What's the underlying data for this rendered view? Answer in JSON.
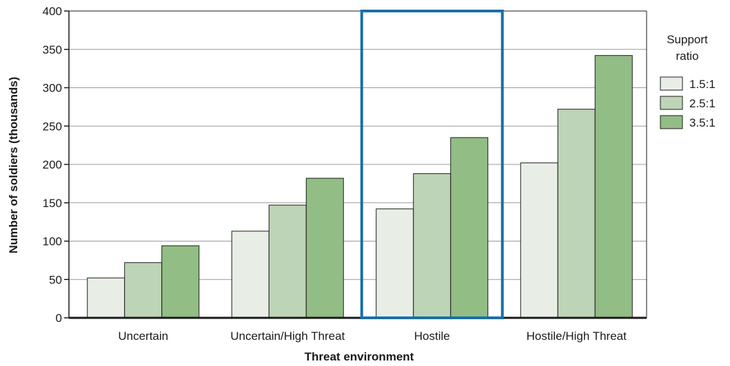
{
  "chart_data": {
    "type": "bar",
    "xlabel": "Threat environment",
    "ylabel": "Number of soldiers (thousands)",
    "ylim": [
      0,
      400
    ],
    "yticks": [
      0,
      50,
      100,
      150,
      200,
      250,
      300,
      350,
      400
    ],
    "grid": true,
    "categories": [
      "Uncertain",
      "Uncertain/High Threat",
      "Hostile",
      "Hostile/High Threat"
    ],
    "highlighted_category": "Hostile",
    "legend": {
      "title_lines": [
        "Support",
        "ratio"
      ],
      "placement": "right"
    },
    "series": [
      {
        "name": "1.5:1",
        "color": "#e8eee6",
        "values": [
          52,
          113,
          142,
          202
        ]
      },
      {
        "name": "2.5:1",
        "color": "#bed4b6",
        "values": [
          72,
          147,
          188,
          272
        ]
      },
      {
        "name": "3.5:1",
        "color": "#92bd84",
        "values": [
          94,
          182,
          235,
          342
        ]
      }
    ],
    "colors": {
      "highlight": "#1a6fa8",
      "bar_stroke": "#1a1a1a",
      "grid": "#9a9a9a"
    }
  }
}
